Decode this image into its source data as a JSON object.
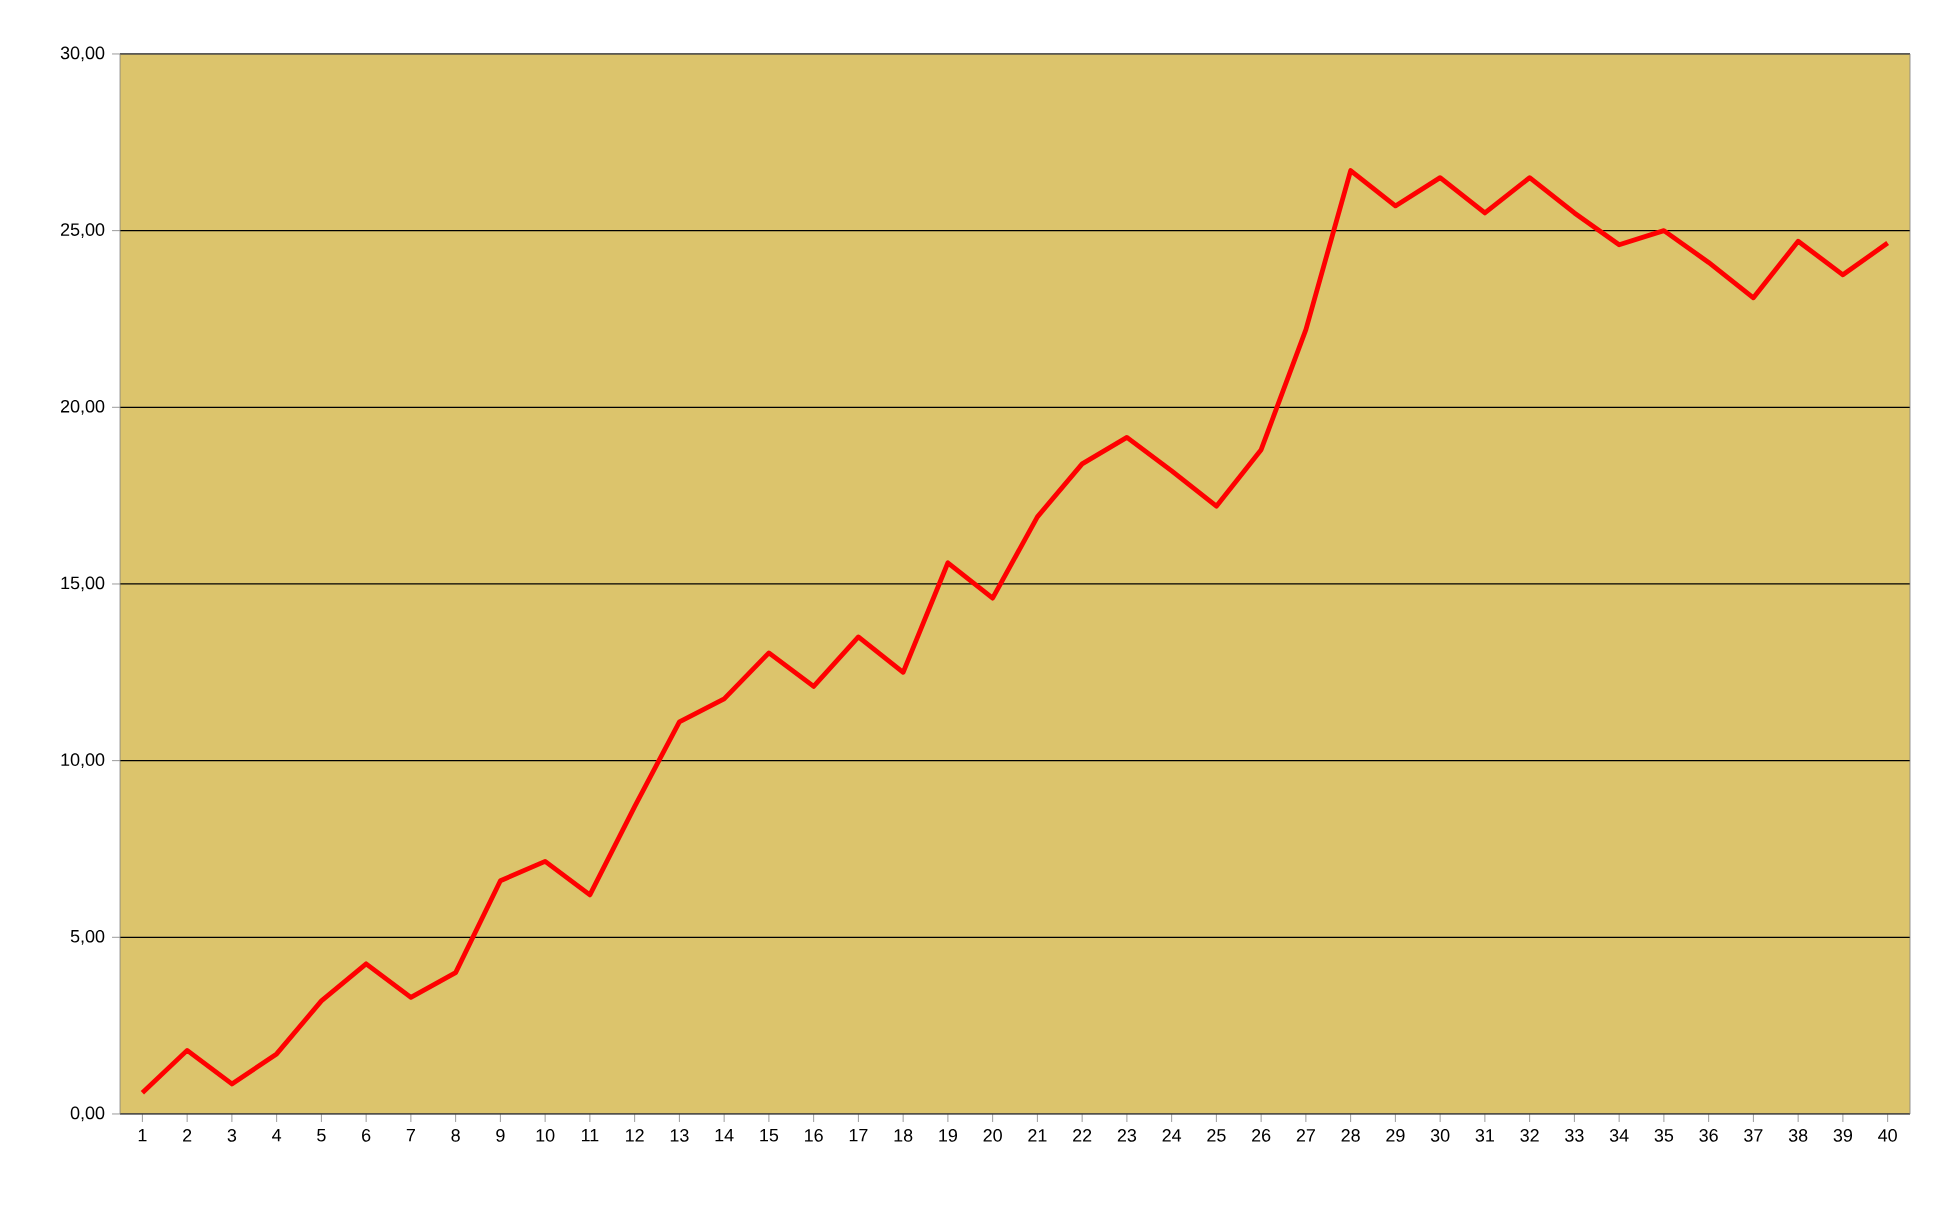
{
  "chart_data": {
    "type": "line",
    "categories": [
      "1",
      "2",
      "3",
      "4",
      "5",
      "6",
      "7",
      "8",
      "9",
      "10",
      "11",
      "12",
      "13",
      "14",
      "15",
      "16",
      "17",
      "18",
      "19",
      "20",
      "21",
      "22",
      "23",
      "24",
      "25",
      "26",
      "27",
      "28",
      "29",
      "30",
      "31",
      "32",
      "33",
      "34",
      "35",
      "36",
      "37",
      "38",
      "39",
      "40"
    ],
    "series": [
      {
        "color": "#ff0000",
        "values": [
          0.6,
          1.8,
          0.85,
          1.7,
          3.2,
          4.25,
          3.3,
          4.0,
          6.6,
          7.15,
          6.2,
          8.7,
          11.1,
          11.75,
          13.05,
          12.1,
          13.5,
          12.5,
          15.6,
          14.6,
          16.9,
          18.4,
          19.15,
          18.2,
          17.2,
          18.8,
          22.2,
          26.7,
          25.7,
          26.5,
          25.5,
          26.5,
          25.5,
          24.6,
          25.0,
          24.1,
          23.1,
          24.7,
          23.75,
          24.65
        ]
      }
    ],
    "ylim": [
      0,
      30
    ],
    "yticks": [
      {
        "value": 0,
        "label": "0,00"
      },
      {
        "value": 5,
        "label": "5,00"
      },
      {
        "value": 10,
        "label": "10,00"
      },
      {
        "value": 15,
        "label": "15,00"
      },
      {
        "value": 20,
        "label": "20,00"
      },
      {
        "value": 25,
        "label": "25,00"
      },
      {
        "value": 30,
        "label": "30,00"
      }
    ],
    "grid": "y",
    "marker": "none",
    "line_style": "solid"
  }
}
